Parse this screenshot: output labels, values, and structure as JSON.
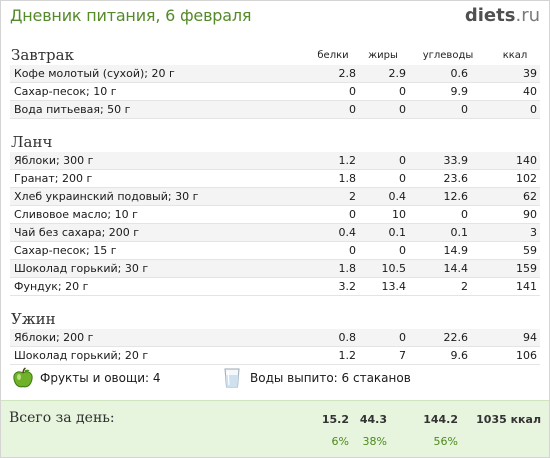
{
  "header": {
    "title": "Дневник питания, 6 февраля",
    "logo_name": "diets",
    "logo_tld": ".ru"
  },
  "columns": {
    "protein": "белки",
    "fat": "жиры",
    "carbs": "углеводы",
    "kcal": "ккал"
  },
  "meals": [
    {
      "name": "Завтрак",
      "rows": [
        {
          "name": "Кофе молотый (сухой); 20 г",
          "protein": "2.8",
          "fat": "2.9",
          "carbs": "0.6",
          "kcal": "39"
        },
        {
          "name": "Сахар-песок; 10 г",
          "protein": "0",
          "fat": "0",
          "carbs": "9.9",
          "kcal": "40"
        },
        {
          "name": "Вода питьевая; 50 г",
          "protein": "0",
          "fat": "0",
          "carbs": "0",
          "kcal": "0"
        }
      ]
    },
    {
      "name": "Ланч",
      "rows": [
        {
          "name": "Яблоки; 300 г",
          "protein": "1.2",
          "fat": "0",
          "carbs": "33.9",
          "kcal": "140"
        },
        {
          "name": "Гранат; 200 г",
          "protein": "1.8",
          "fat": "0",
          "carbs": "23.6",
          "kcal": "102"
        },
        {
          "name": "Хлеб украинский подовый; 30 г",
          "protein": "2",
          "fat": "0.4",
          "carbs": "12.6",
          "kcal": "62"
        },
        {
          "name": "Сливовое масло; 10 г",
          "protein": "0",
          "fat": "10",
          "carbs": "0",
          "kcal": "90"
        },
        {
          "name": "Чай без сахара; 200 г",
          "protein": "0.4",
          "fat": "0.1",
          "carbs": "0.1",
          "kcal": "3"
        },
        {
          "name": "Сахар-песок; 15 г",
          "protein": "0",
          "fat": "0",
          "carbs": "14.9",
          "kcal": "59"
        },
        {
          "name": "Шоколад горький; 30 г",
          "protein": "1.8",
          "fat": "10.5",
          "carbs": "14.4",
          "kcal": "159"
        },
        {
          "name": "Фундук; 20 г",
          "protein": "3.2",
          "fat": "13.4",
          "carbs": "2",
          "kcal": "141"
        }
      ]
    },
    {
      "name": "Ужин",
      "rows": [
        {
          "name": "Яблоки; 200 г",
          "protein": "0.8",
          "fat": "0",
          "carbs": "22.6",
          "kcal": "94"
        },
        {
          "name": "Шоколад горький; 20 г",
          "protein": "1.2",
          "fat": "7",
          "carbs": "9.6",
          "kcal": "106"
        }
      ]
    }
  ],
  "extras": {
    "fruit_icon": "apple-icon",
    "fruit_text": "Фрукты и овощи: 4",
    "water_icon": "glass-icon",
    "water_text": "Воды выпито: 6 стаканов"
  },
  "totals": {
    "label": "Всего за день:",
    "protein": "15.2",
    "fat": "44.3",
    "carbs": "144.2",
    "kcal": "1035 ккал",
    "protein_pct": "6%",
    "fat_pct": "38%",
    "carbs_pct": "56%"
  },
  "colors": {
    "title": "#558a2a",
    "totals_bg": "#e8f5de",
    "percent": "#4a8a1c"
  }
}
